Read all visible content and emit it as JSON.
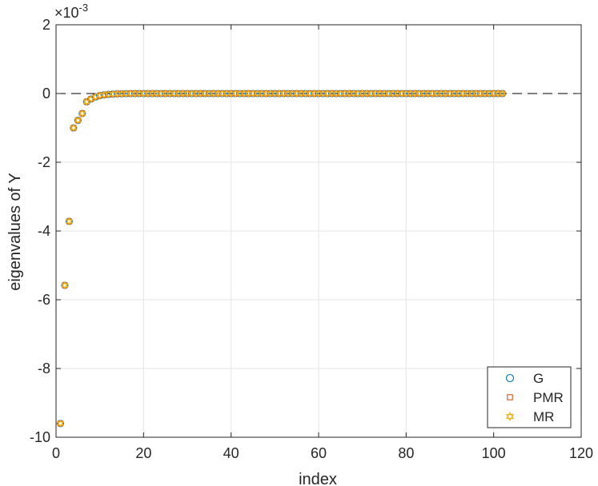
{
  "chart_data": {
    "type": "scatter",
    "xlabel": "index",
    "ylabel": "eigenvalues of Y",
    "xlim": [
      0,
      120
    ],
    "ylim": [
      -10,
      2
    ],
    "y_multiplier": "×10",
    "y_exponent": "-3",
    "xticks": [
      "0",
      "20",
      "40",
      "60",
      "80",
      "100",
      "120"
    ],
    "yticks": [
      "-10",
      "-8",
      "-6",
      "-4",
      "-2",
      "0",
      "2"
    ],
    "grid": true,
    "legend_position": "bottom-right",
    "reference_line": {
      "y": 0,
      "style": "dashed",
      "color": "#000000"
    },
    "x_range": [
      1,
      102
    ],
    "leading_values": [
      -9.6,
      -5.58,
      -3.72,
      -1.0,
      -0.78,
      -0.58,
      -0.24,
      -0.16,
      -0.1,
      -0.06,
      -0.04,
      -0.025,
      -0.015,
      -0.01,
      -0.006,
      -0.003
    ],
    "tail_value": 0,
    "series": [
      {
        "name": "G",
        "marker": "circle",
        "color": "#0072bd"
      },
      {
        "name": "PMR",
        "marker": "square",
        "color": "#d95319"
      },
      {
        "name": "MR",
        "marker": "hexagram",
        "color": "#edb120"
      }
    ]
  }
}
